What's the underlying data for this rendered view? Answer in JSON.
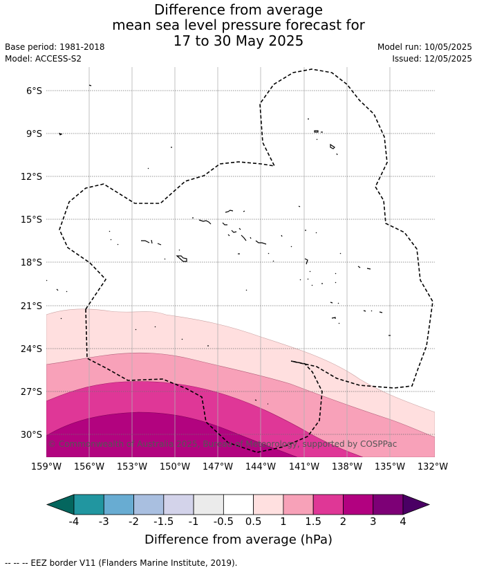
{
  "title": {
    "line1": "Difference from average",
    "line2": "mean sea level pressure forecast for",
    "line3": "17 to 30 May 2025"
  },
  "meta": {
    "base_period": "Base period: 1981-2018",
    "model": "Model: ACCESS-S2",
    "model_run": "Model run: 10/05/2025",
    "issued": "Issued: 12/05/2025"
  },
  "map": {
    "lat_labels": [
      "6°S",
      "9°S",
      "12°S",
      "15°S",
      "18°S",
      "21°S",
      "24°S",
      "27°S",
      "30°S"
    ],
    "lon_labels": [
      "159°W",
      "156°W",
      "153°W",
      "150°W",
      "147°W",
      "144°W",
      "141°W",
      "138°W",
      "135°W",
      "132°W"
    ],
    "credit": "© Commonwealth of Australia 2025, Bureau of Meteorology, supported by COSPPac",
    "border_style": "dashed",
    "gridlines": "dotted"
  },
  "colorbar": {
    "ticks": [
      "-4",
      "-3",
      "-2",
      "-1.5",
      "-1",
      "-0.5",
      "0.5",
      "1",
      "1.5",
      "2",
      "3",
      "4"
    ],
    "colors": [
      "#04665e",
      "#2196a0",
      "#68acd2",
      "#a9bfe0",
      "#d3d3ea",
      "#ebebeb",
      "#ffffff",
      "#ffe0e0",
      "#f7a1b8",
      "#df3796",
      "#b20180",
      "#7d0076",
      "#4a0064"
    ],
    "label": "Difference from average (hPa)"
  },
  "footnote": "--  --  -- EEZ border V11 (Flanders Marine Institute, 2019)."
}
